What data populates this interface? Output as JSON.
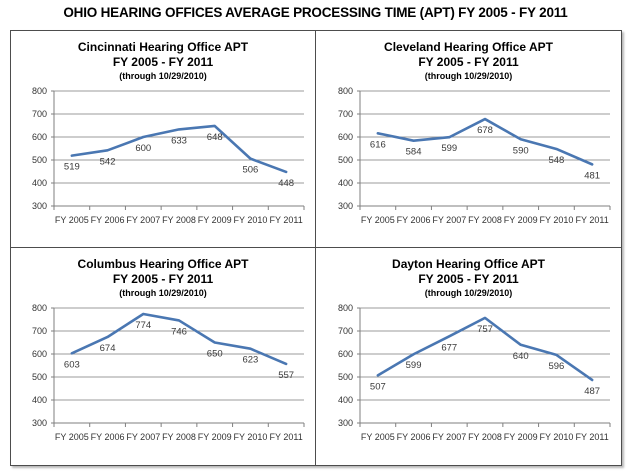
{
  "page_title": "OHIO HEARING OFFICES AVERAGE PROCESSING TIME (APT) FY 2005 - FY 2011",
  "colors": {
    "line": "#4a77b2",
    "grid": "#9b9b9b",
    "axis": "#7f7f7f",
    "tick_label": "#333333",
    "data_label": "#3a3a3a"
  },
  "chart_data": [
    {
      "type": "line",
      "title": "Cincinnati Hearing Office APT",
      "subtitle": "FY 2005 - FY 2011",
      "note": "(through 10/29/2010)",
      "categories": [
        "FY 2005",
        "FY 2006",
        "FY 2007",
        "FY 2008",
        "FY 2009",
        "FY 2010",
        "FY 2011"
      ],
      "values": [
        519,
        542,
        600,
        633,
        648,
        506,
        448
      ],
      "ylim": [
        300,
        800
      ],
      "ytick_step": 100,
      "grid": true,
      "legend": "none"
    },
    {
      "type": "line",
      "title": "Cleveland Hearing Office APT",
      "subtitle": "FY 2005 - FY 2011",
      "note": "(through 10/29/2010)",
      "categories": [
        "FY 2005",
        "FY 2006",
        "FY 2007",
        "FY 2008",
        "FY 2009",
        "FY 2010",
        "FY 2011"
      ],
      "values": [
        616,
        584,
        599,
        678,
        590,
        548,
        481
      ],
      "ylim": [
        300,
        800
      ],
      "ytick_step": 100,
      "grid": true,
      "legend": "none"
    },
    {
      "type": "line",
      "title": "Columbus Hearing Office APT",
      "subtitle": "FY 2005 - FY 2011",
      "note": "(through 10/29/2010)",
      "categories": [
        "FY 2005",
        "FY 2006",
        "FY 2007",
        "FY 2008",
        "FY 2009",
        "FY 2010",
        "FY 2011"
      ],
      "values": [
        603,
        674,
        774,
        746,
        650,
        623,
        557
      ],
      "ylim": [
        300,
        800
      ],
      "ytick_step": 100,
      "grid": true,
      "legend": "none"
    },
    {
      "type": "line",
      "title": "Dayton Hearing Office APT",
      "subtitle": "FY 2005 - FY 2011",
      "note": "(through 10/29/2010)",
      "categories": [
        "FY 2005",
        "FY 2006",
        "FY 2007",
        "FY 2008",
        "FY 2009",
        "FY 2010",
        "FY 2011"
      ],
      "values": [
        507,
        599,
        677,
        757,
        640,
        596,
        487
      ],
      "ylim": [
        300,
        800
      ],
      "ytick_step": 100,
      "grid": true,
      "legend": "none"
    }
  ]
}
